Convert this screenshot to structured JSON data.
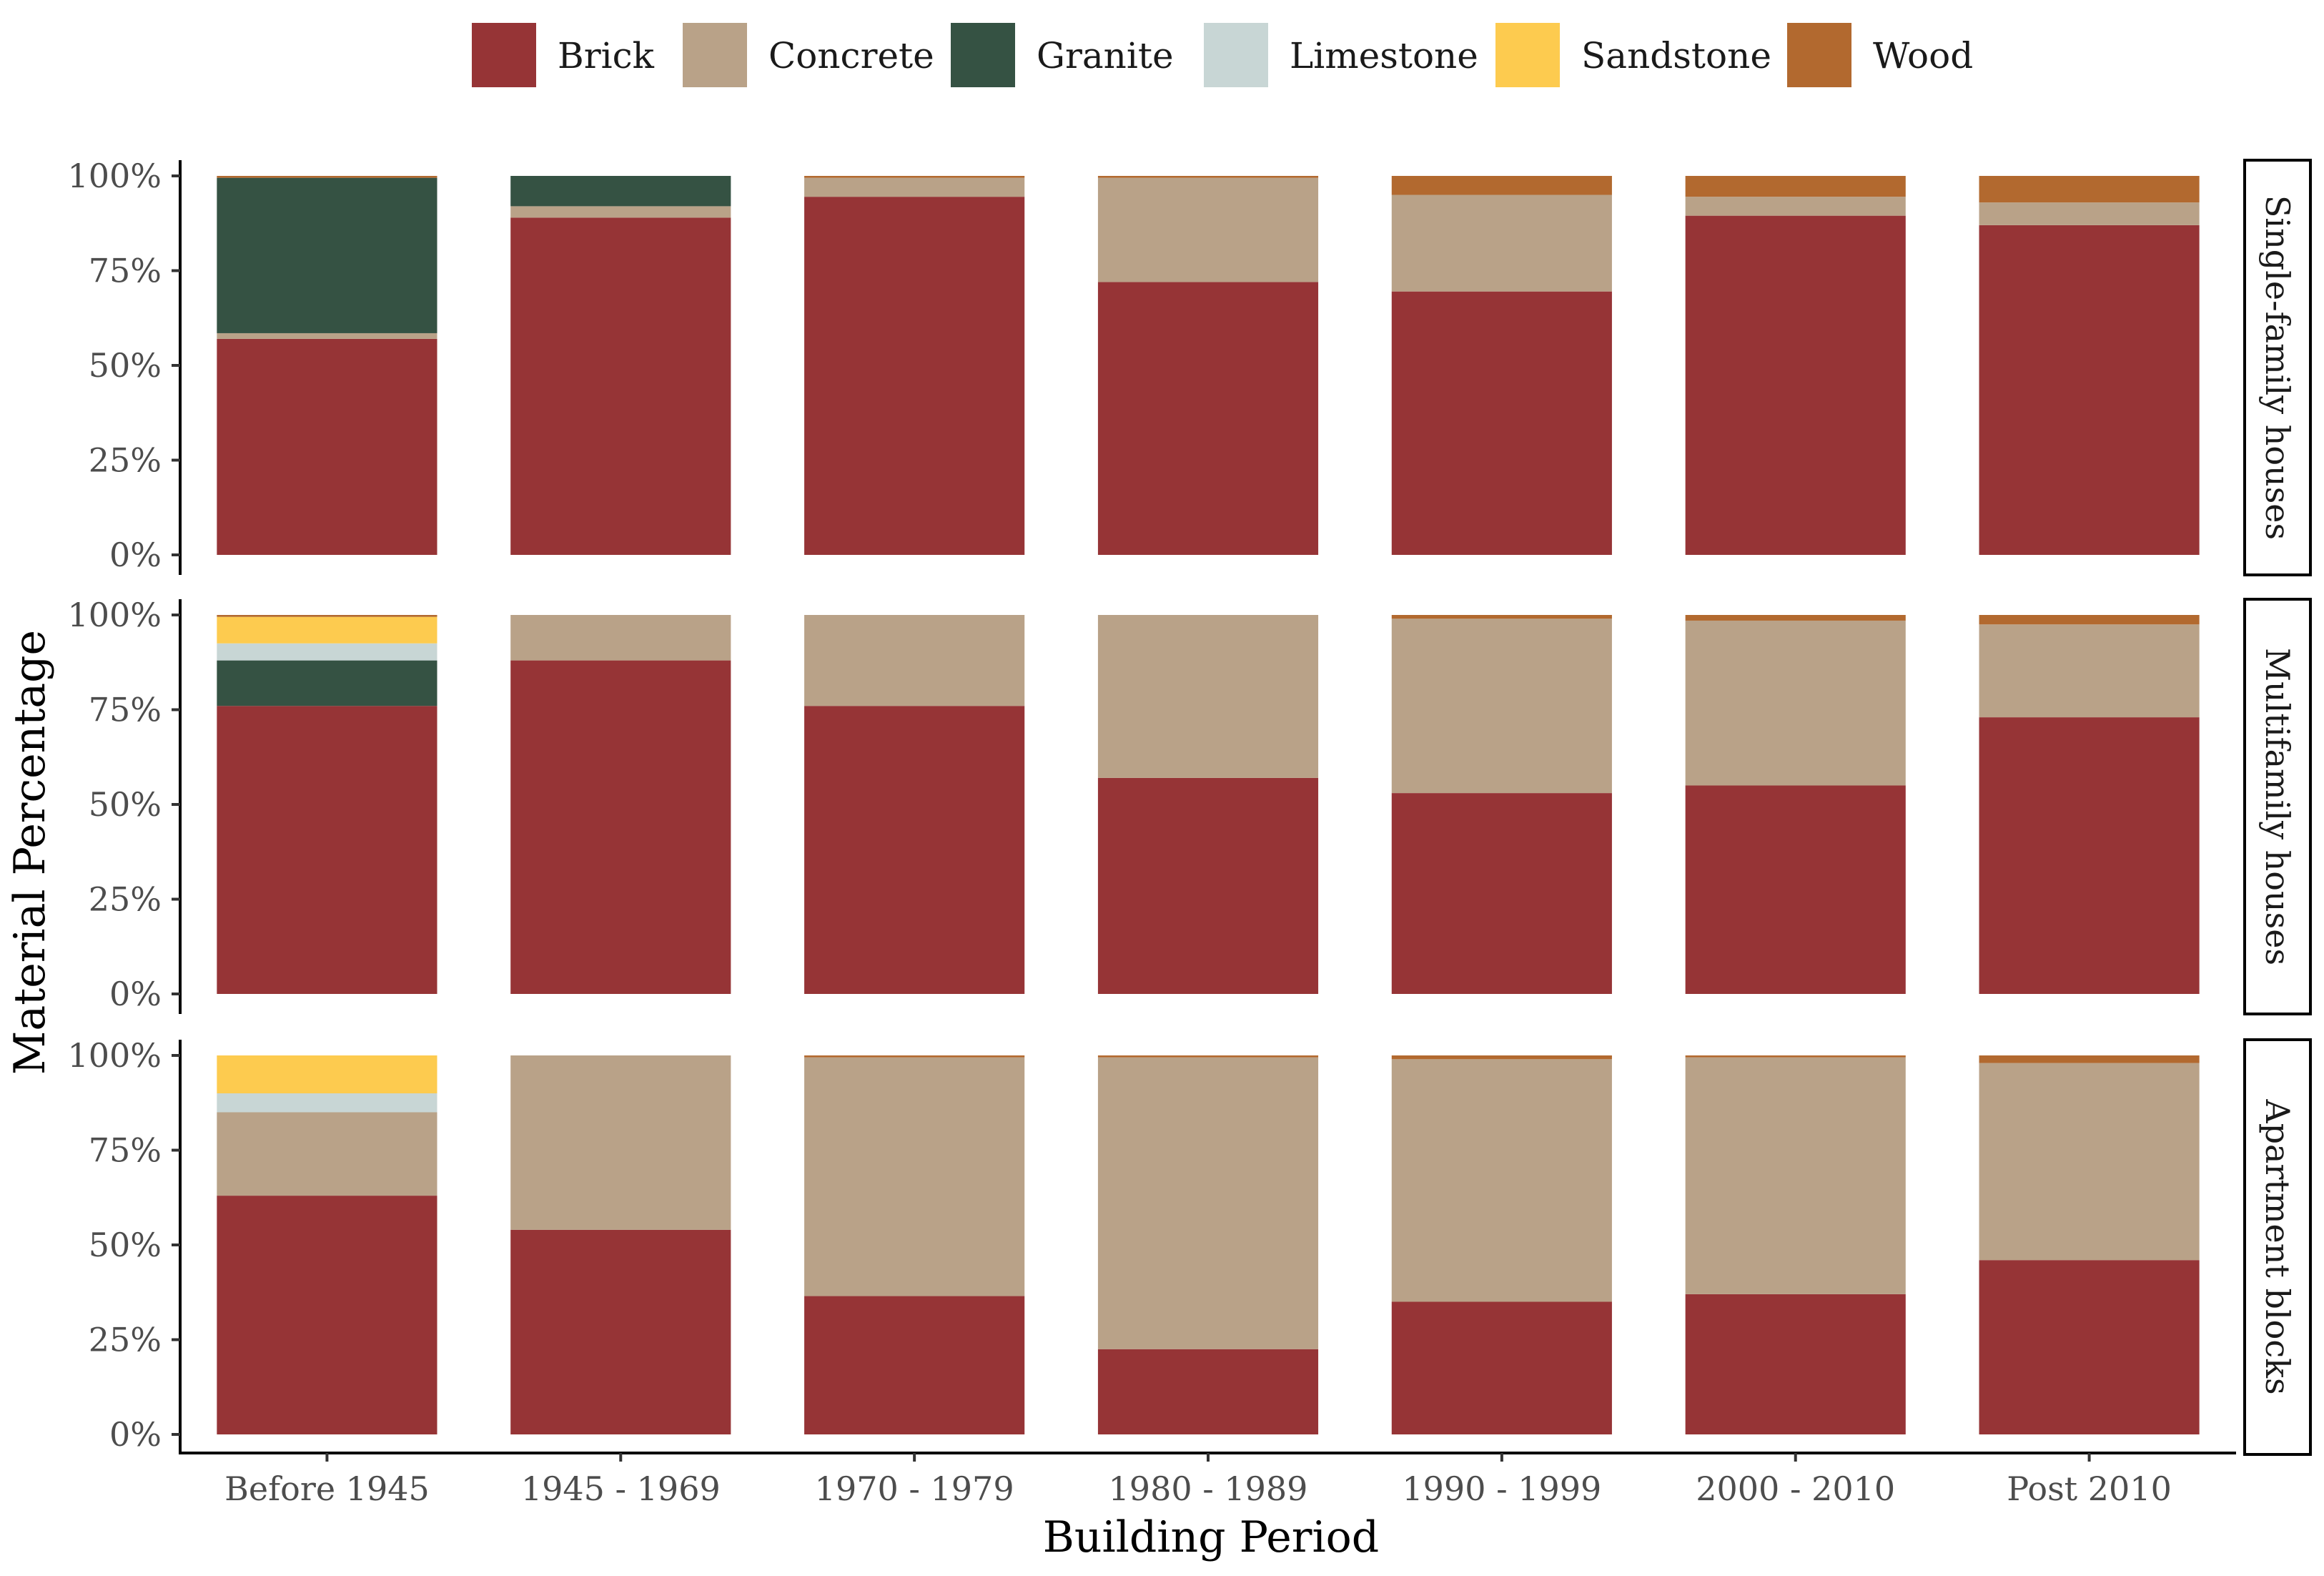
{
  "chart_data": {
    "type": "bar",
    "stacked": true,
    "xlabel": "Building Period",
    "ylabel": "Material Percentage",
    "categories": [
      "Before 1945",
      "1945 - 1969",
      "1970 - 1979",
      "1980 - 1989",
      "1990 - 1999",
      "2000 - 2010",
      "Post 2010"
    ],
    "y_ticks": [
      "0%",
      "25%",
      "50%",
      "75%",
      "100%"
    ],
    "ylim": [
      0,
      100
    ],
    "grid": false,
    "legend_position": "top",
    "materials": [
      "Brick",
      "Concrete",
      "Granite",
      "Limestone",
      "Sandstone",
      "Wood"
    ],
    "colors": {
      "Brick": "#963436",
      "Concrete": "#B9A288",
      "Granite": "#355243",
      "Limestone": "#C8D6D5",
      "Sandstone": "#FDCB4F",
      "Wood": "#B2692F"
    },
    "panels": [
      {
        "name": "Single-family houses",
        "series": [
          {
            "name": "Brick",
            "values": [
              57,
              89,
              94.5,
              72,
              69.5,
              89.5,
              87
            ]
          },
          {
            "name": "Concrete",
            "values": [
              1.5,
              3,
              5,
              27.5,
              25.5,
              5,
              6
            ]
          },
          {
            "name": "Granite",
            "values": [
              41,
              8,
              0,
              0,
              0,
              0,
              0
            ]
          },
          {
            "name": "Limestone",
            "values": [
              0,
              0,
              0,
              0,
              0,
              0,
              0
            ]
          },
          {
            "name": "Sandstone",
            "values": [
              0,
              0,
              0,
              0,
              0,
              0,
              0
            ]
          },
          {
            "name": "Wood",
            "values": [
              0.5,
              0,
              0.5,
              0.5,
              5,
              5.5,
              7
            ]
          }
        ]
      },
      {
        "name": "Multifamily houses",
        "series": [
          {
            "name": "Brick",
            "values": [
              76,
              88,
              76,
              57,
              53,
              55,
              73
            ]
          },
          {
            "name": "Concrete",
            "values": [
              0,
              12,
              24,
              43,
              46,
              43.5,
              24.5
            ]
          },
          {
            "name": "Granite",
            "values": [
              12,
              0,
              0,
              0,
              0,
              0,
              0
            ]
          },
          {
            "name": "Limestone",
            "values": [
              4.5,
              0,
              0,
              0,
              0,
              0,
              0
            ]
          },
          {
            "name": "Sandstone",
            "values": [
              7,
              0,
              0,
              0,
              0,
              0,
              0
            ]
          },
          {
            "name": "Wood",
            "values": [
              0.5,
              0,
              0,
              0,
              1,
              1.5,
              2.5
            ]
          }
        ]
      },
      {
        "name": "Apartment blocks",
        "series": [
          {
            "name": "Brick",
            "values": [
              63,
              54,
              36.5,
              22.5,
              35,
              37,
              46
            ]
          },
          {
            "name": "Concrete",
            "values": [
              22,
              46,
              63,
              77,
              64,
              62.5,
              52
            ]
          },
          {
            "name": "Granite",
            "values": [
              0,
              0,
              0,
              0,
              0,
              0,
              0
            ]
          },
          {
            "name": "Limestone",
            "values": [
              5,
              0,
              0,
              0,
              0,
              0,
              0
            ]
          },
          {
            "name": "Sandstone",
            "values": [
              10,
              0,
              0,
              0,
              0,
              0,
              0
            ]
          },
          {
            "name": "Wood",
            "values": [
              0,
              0,
              0.5,
              0.5,
              1,
              0.5,
              2
            ]
          }
        ]
      }
    ]
  }
}
